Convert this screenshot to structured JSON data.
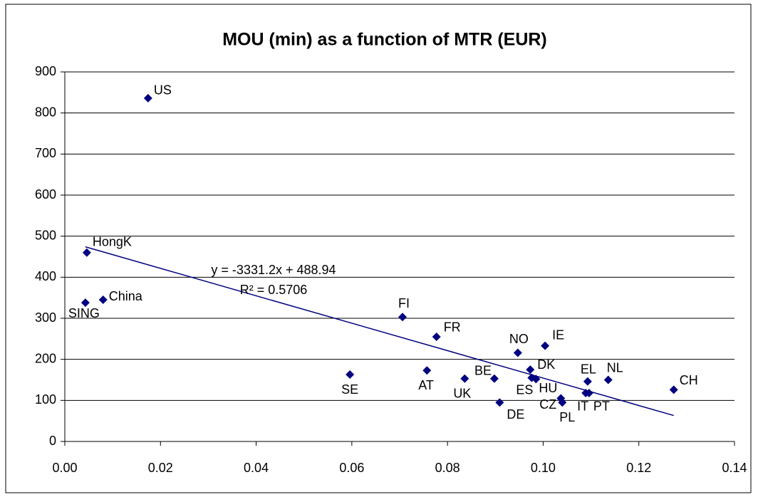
{
  "chart_data": {
    "type": "scatter",
    "title": "MOU (min) as a function of MTR (EUR)",
    "x": [
      0.0174,
      0.0046,
      0.0043,
      0.008,
      0.0706,
      0.0777,
      0.0596,
      0.0757,
      0.0836,
      0.0898,
      0.0909,
      0.0947,
      0.1004,
      0.0973,
      0.0976,
      0.0985,
      0.1037,
      0.104,
      0.1093,
      0.1089,
      0.1096,
      0.1136,
      0.1273
    ],
    "values": [
      836,
      460,
      338,
      345,
      303,
      255,
      163,
      173,
      153,
      153,
      95,
      216,
      233,
      175,
      155,
      152,
      105,
      95,
      146,
      118,
      118,
      150,
      126
    ],
    "point_labels": [
      "US",
      "HongK",
      "SING",
      "China",
      "FI",
      "FR",
      "SE",
      "AT",
      "UK",
      "BE",
      "DE",
      "NO",
      "IE",
      "DK",
      "ES",
      "HU",
      "CZ",
      "PL",
      "EL",
      "IT",
      "PT",
      "NL",
      "CH"
    ],
    "color": "#000080",
    "trendline": {
      "color": "#000080",
      "equation": "y = -3331.2x + 488.94",
      "r_squared": "R² = 0.5706"
    },
    "xlim": [
      0,
      0.14
    ],
    "xticks": [
      {
        "value": 0,
        "label": "0.00"
      },
      {
        "value": 0.02,
        "label": "0.02"
      },
      {
        "value": 0.04,
        "label": "0.04"
      },
      {
        "value": 0.06,
        "label": "0.06"
      },
      {
        "value": 0.08,
        "label": "0.08"
      },
      {
        "value": 0.1,
        "label": "0.10"
      },
      {
        "value": 0.12,
        "label": "0.12"
      },
      {
        "value": 0.14,
        "label": "0.14"
      }
    ],
    "ylim": [
      0,
      900
    ],
    "yticks": [
      0,
      100,
      200,
      300,
      400,
      500,
      600,
      700,
      800,
      900
    ],
    "grid": true
  }
}
